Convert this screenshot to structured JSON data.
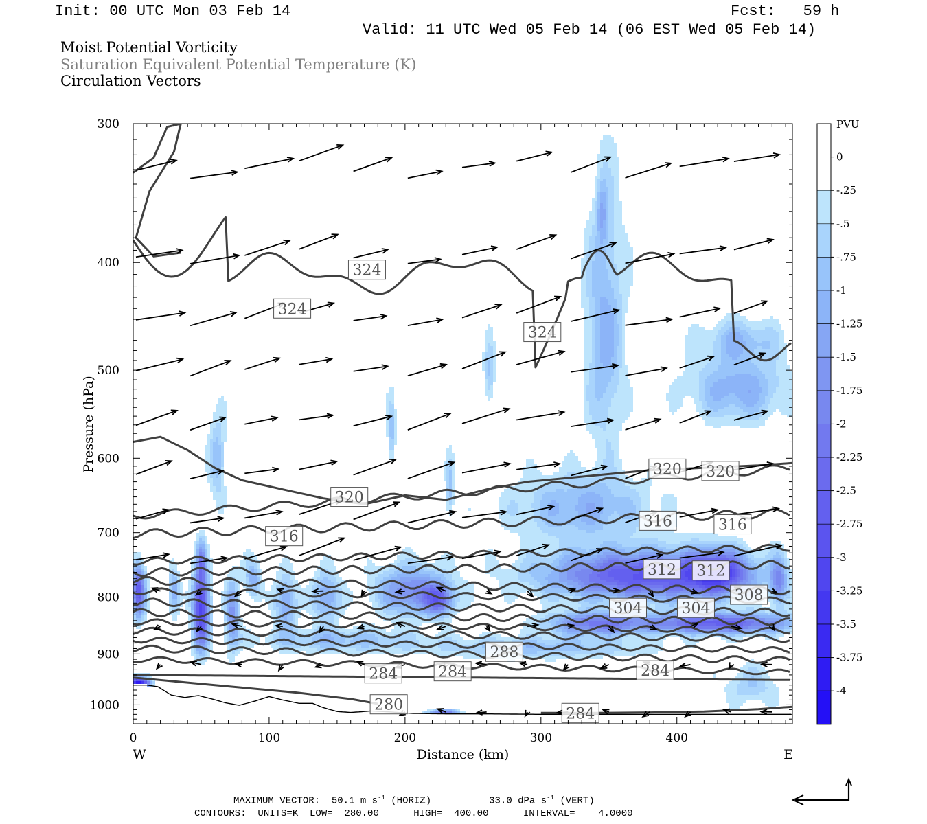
{
  "header": {
    "init": "Init: 00 UTC Mon 03 Feb 14",
    "fcst": "Fcst:   59 h",
    "valid": "Valid: 11 UTC Wed 05 Feb 14 (06 EST Wed 05 Feb 14)",
    "field1": "Moist Potential Vorticity",
    "field2": "Saturation Equivalent Potential Temperature (K)",
    "field3": "Circulation Vectors"
  },
  "footer": {
    "maxvec_label": "MAXIMUM VECTOR:",
    "maxvec_horiz": "50.1 m s",
    "maxvec_horiz_unit": "(HORIZ)",
    "maxvec_vert": "33.0 dPa s",
    "maxvec_vert_unit": "(VERT)",
    "contours": "CONTOURS:  UNITS=K  LOW=  280.00      HIGH=  400.00      INTERVAL=    4.0000"
  },
  "colors": {
    "contour": "#404040",
    "vector": "#000000",
    "pv_shades": [
      "#ffffff",
      "#ffffff",
      "#bde4fc",
      "#a9d4fc",
      "#98c4fa",
      "#8cb4f8",
      "#86a6f4",
      "#7f96f2",
      "#7888ef",
      "#7279ef",
      "#6b6bee",
      "#6360ef",
      "#5b54ef",
      "#5046ef",
      "#4438f0",
      "#3a2af2",
      "#2f1cf3",
      "#2410f6"
    ]
  },
  "chart_data": {
    "type": "heatmap",
    "title": "Moist Potential Vorticity",
    "xlabel": "Distance (km)",
    "ylabel": "Pressure (hPa)",
    "xlim": [
      0,
      485
    ],
    "ylim": [
      1040,
      300
    ],
    "yscale": "log",
    "x_ticks": [
      0,
      100,
      200,
      300,
      400
    ],
    "y_ticks": [
      300,
      400,
      500,
      600,
      700,
      800,
      900,
      1000
    ],
    "x_end_labels": {
      "left": "W",
      "right": "E"
    },
    "colorbar": {
      "unit": "PVU",
      "labels": [
        "0",
        "-.25",
        "-.5",
        "-.75",
        "-1",
        "-1.25",
        "-1.5",
        "-1.75",
        "-2",
        "-2.25",
        "-2.5",
        "-2.75",
        "-3",
        "-3.25",
        "-3.5",
        "-3.75",
        "-4"
      ]
    },
    "contour_labels": [
      {
        "text": "324",
        "x": 117,
        "p": 440
      },
      {
        "text": "324",
        "x": 172,
        "p": 406
      },
      {
        "text": "324",
        "x": 301,
        "p": 462
      },
      {
        "text": "320",
        "x": 159,
        "p": 650
      },
      {
        "text": "320",
        "x": 393,
        "p": 613
      },
      {
        "text": "320",
        "x": 432,
        "p": 616
      },
      {
        "text": "316",
        "x": 111,
        "p": 705
      },
      {
        "text": "316",
        "x": 386,
        "p": 683
      },
      {
        "text": "316",
        "x": 441,
        "p": 688
      },
      {
        "text": "312",
        "x": 389,
        "p": 755
      },
      {
        "text": "312",
        "x": 425,
        "p": 757
      },
      {
        "text": "308",
        "x": 453,
        "p": 796
      },
      {
        "text": "304",
        "x": 364,
        "p": 818
      },
      {
        "text": "304",
        "x": 414,
        "p": 818
      },
      {
        "text": "288",
        "x": 273,
        "p": 896
      },
      {
        "text": "284",
        "x": 184,
        "p": 937
      },
      {
        "text": "284",
        "x": 235,
        "p": 933
      },
      {
        "text": "284",
        "x": 384,
        "p": 931
      },
      {
        "text": "280",
        "x": 188,
        "p": 999
      },
      {
        "text": "284",
        "x": 329,
        "p": 1017
      }
    ]
  }
}
